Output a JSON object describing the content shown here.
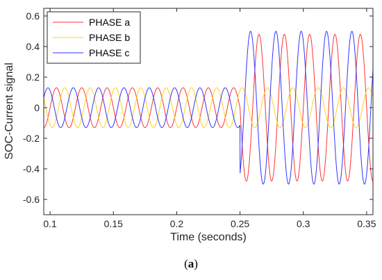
{
  "caption": {
    "open": "(",
    "letter": "a",
    "close": ")"
  },
  "chart_data": {
    "type": "line",
    "xlabel": "Time (seconds)",
    "ylabel": "SOC-Current signal",
    "xlim": [
      0.095,
      0.355
    ],
    "ylim": [
      -0.7,
      0.65
    ],
    "xticks": [
      0.1,
      0.15,
      0.2,
      0.25,
      0.3,
      0.35
    ],
    "xtick_labels": [
      "0.1",
      "0.15",
      "0.2",
      "0.25",
      "0.3",
      "0.35"
    ],
    "yticks": [
      -0.6,
      -0.4,
      -0.2,
      0,
      0.2,
      0.4,
      0.6
    ],
    "ytick_labels": [
      "-0.6",
      "-0.4",
      "-0.2",
      "0",
      "0.2",
      "0.4",
      "0.6"
    ],
    "grid": false,
    "legend_position": "top-left",
    "frequency_hz": 50,
    "fault_time": 0.25,
    "series": [
      {
        "name": "PHASE a",
        "color": "#ff3333",
        "amplitude_before": 0.13,
        "amplitude_after": 0.48,
        "phase_deg": 0,
        "active_after_fault": true
      },
      {
        "name": "PHASE b",
        "color": "#ffd21a",
        "amplitude_before": 0.13,
        "amplitude_after": 0.13,
        "phase_deg": -120,
        "active_after_fault": true
      },
      {
        "name": "PHASE c",
        "color": "#3333ff",
        "amplitude_before": 0.13,
        "amplitude_after": 0.5,
        "phase_deg": 120,
        "active_after_fault": true
      }
    ]
  }
}
